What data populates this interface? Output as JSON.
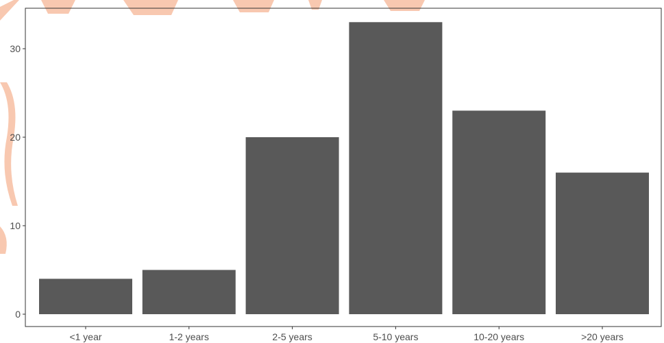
{
  "chart_data": {
    "type": "bar",
    "categories": [
      "<1 year",
      "1-2 years",
      "2-5 years",
      "5-10 years",
      "10-20 years",
      ">20 years"
    ],
    "values": [
      4,
      5,
      20,
      33,
      23,
      16
    ],
    "title": "",
    "xlabel": "",
    "ylabel": "",
    "ylim": [
      0,
      35
    ],
    "yticks": [
      0,
      10,
      20,
      30
    ],
    "grid": false,
    "bar_color": "#595959",
    "axis_color": "#333333"
  },
  "colors": {
    "background": "#ffffff",
    "watermark": "#f8c8b0"
  }
}
